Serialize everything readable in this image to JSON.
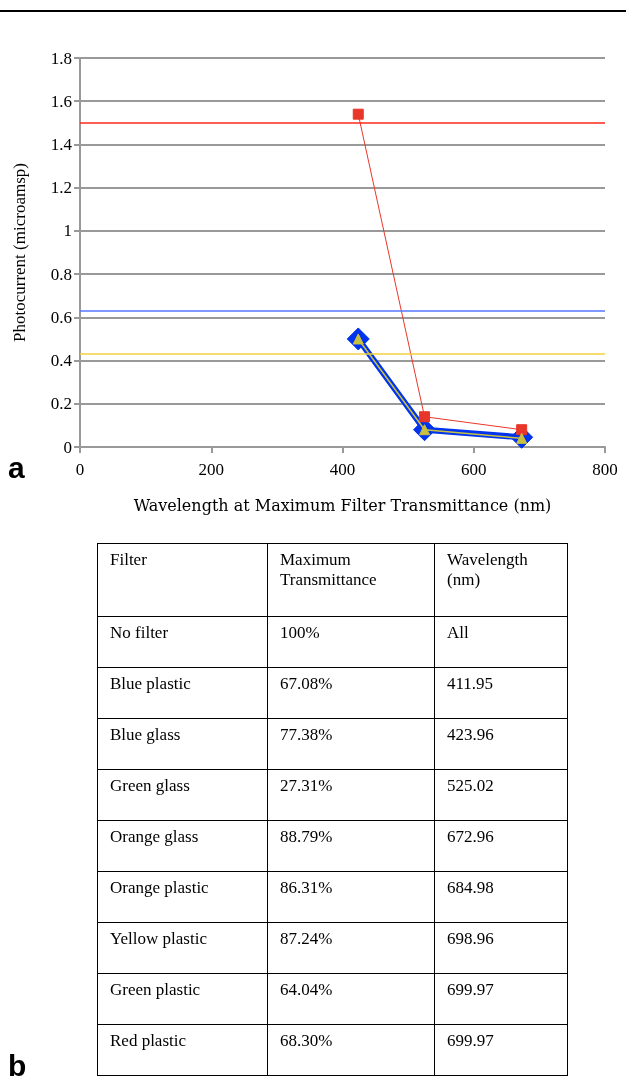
{
  "chart_data": [
    {
      "type": "line",
      "xlabel": "Wavelength at Maximum Filter Transmittance (nm)",
      "ylabel": "Photocurrent (microamsp)",
      "x": [
        424,
        525,
        673
      ],
      "series": [
        {
          "color": "#e8372a",
          "values": [
            1.54,
            0.14,
            0.08
          ],
          "marker": "square"
        },
        {
          "color": "#0033ee",
          "values": [
            0.5,
            0.08,
            0.045
          ],
          "marker": "diamond"
        },
        {
          "color": "#c8c040",
          "values": [
            0.5,
            0.08,
            0.04
          ],
          "marker": "triangle"
        }
      ],
      "ref_lines": [
        {
          "axis": "y",
          "value": 1.5,
          "color": "#ff2a1a"
        },
        {
          "axis": "y",
          "value": 0.63,
          "color": "#5577ff"
        },
        {
          "axis": "y",
          "value": 0.43,
          "color": "#f0d040"
        }
      ],
      "xlim": [
        0,
        800
      ],
      "xticks": [
        0,
        200,
        400,
        600,
        800
      ],
      "ylim": [
        0,
        1.8
      ],
      "yticks": [
        0,
        0.2,
        0.4,
        0.6,
        0.8,
        1,
        1.2,
        1.4,
        1.6,
        1.8
      ],
      "grid": "y",
      "annotations": [
        "a"
      ]
    },
    {
      "type": "other",
      "categories": [
        "Filter",
        "Maximum Transmittance",
        "Wavelength (nm)"
      ],
      "annotations": [
        "b",
        "No filter",
        "100%",
        "All",
        "Blue plastic",
        "67.08%",
        "411.95",
        "Blue glass",
        "77.38%",
        "423.96",
        "Green glass",
        "27.31%",
        "525.02",
        "Orange glass",
        "88.79%",
        "672.96",
        "Orange plastic",
        "86.31%",
        "684.98",
        "Yellow plastic",
        "87.24%",
        "698.96",
        "Green plastic",
        "64.04%",
        "699.97",
        "Red plastic",
        "68.30%",
        "699.97"
      ]
    }
  ]
}
